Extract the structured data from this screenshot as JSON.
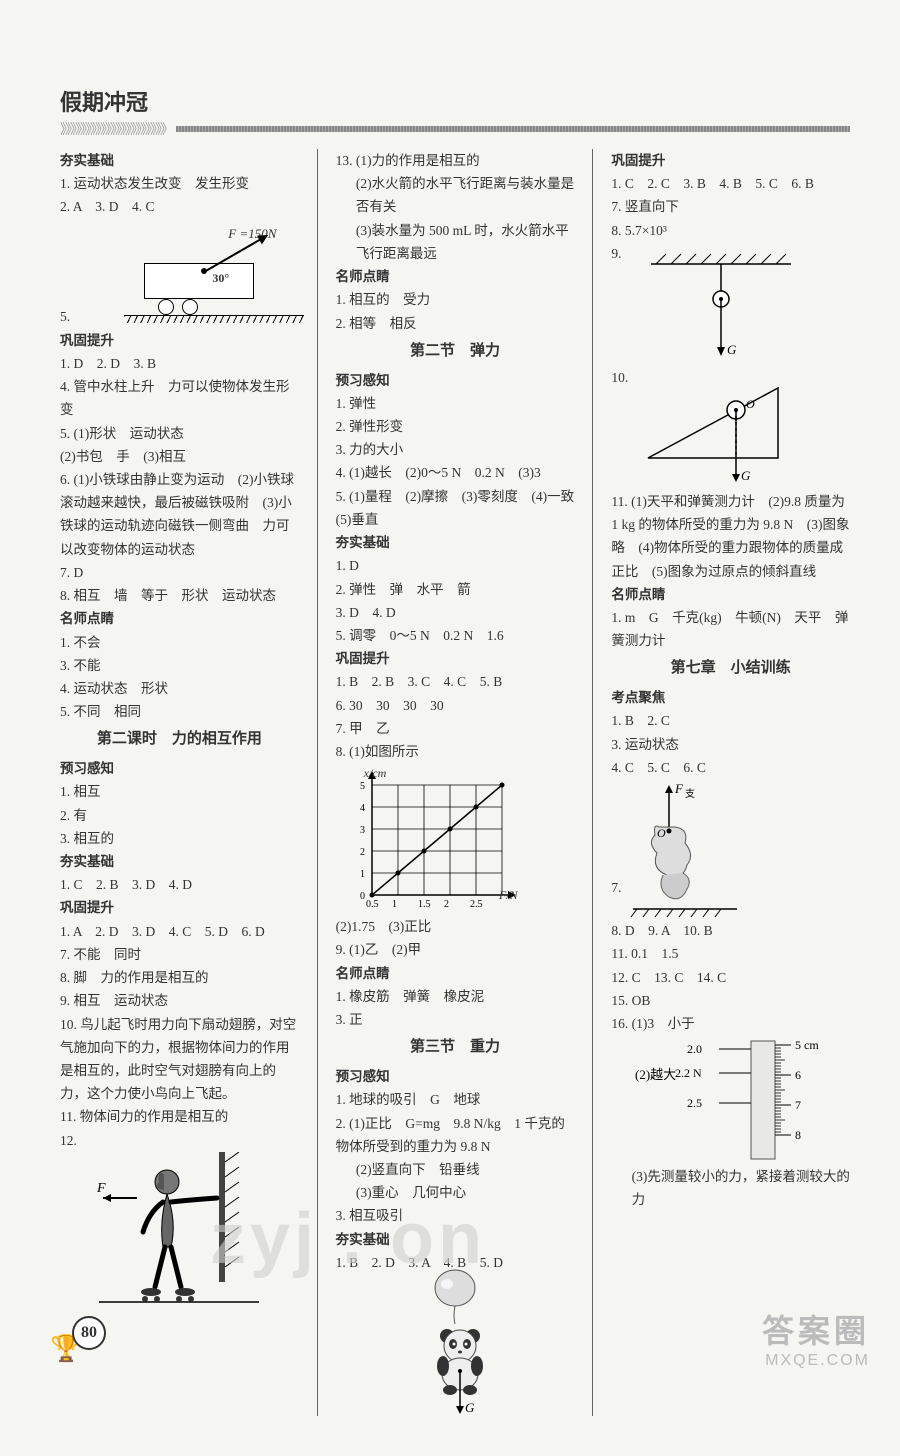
{
  "header": {
    "title": "假期冲冠",
    "arrows": "》》》》》》》》》》》》》》》》》》》》》"
  },
  "page_number": "80",
  "footer": {
    "brand": "答案圈",
    "url": "MXQE.COM"
  },
  "watermark_center": "zyj  . on",
  "col1": {
    "sec1_title": "夯实基础",
    "l1": "1. 运动状态发生改变　发生形变",
    "l2": "2. A　3. D　4. C",
    "d1_force": "F =150N",
    "d1_angle": "30°",
    "l5": "5.",
    "sec2_title": "巩固提升",
    "l6": "1. D　2. D　3. B",
    "l7": "4. 管中水柱上升　力可以使物体发生形变",
    "l8": "5. (1)形状　运动状态",
    "l9": "(2)书包　手　(3)相互",
    "l10": "6. (1)小铁球由静止变为运动　(2)小铁球滚动越来越快，最后被磁铁吸附　(3)小铁球的运动轨迹向磁铁一侧弯曲　力可以改变物体的运动状态",
    "l11": "7. D",
    "l12": "8. 相互　墙　等于　形状　运动状态",
    "sec3_title": "名师点睛",
    "l13": "1. 不会",
    "l14": "3. 不能",
    "l15": "4. 运动状态　形状",
    "l16": "5. 不同　相同",
    "sec4_title": "第二课时　力的相互作用",
    "sec5_title": "预习感知",
    "l17": "1. 相互",
    "l18": "2. 有",
    "l19": "3. 相互的",
    "sec6_title": "夯实基础",
    "l20": "1. C　2. B　3. D　4. D",
    "sec7_title": "巩固提升",
    "l21": "1. A　2. D　3. D　4. C　5. D　6. D",
    "l22": "7. 不能　同时",
    "l23": "8. 脚　力的作用是相互的",
    "l24": "9. 相互　运动状态",
    "l25": "10. 鸟儿起飞时用力向下扇动翅膀，对空气施加向下的力，根据物体间力的作用是相互的，此时空气对翅膀有向上的力，这个力使小鸟向上飞起。",
    "l26": "11. 物体间力的作用是相互的",
    "l27": "12.",
    "d2_F": "F"
  },
  "col2": {
    "l1": "13. (1)力的作用是相互的",
    "l2": "(2)水火箭的水平飞行距离与装水量是否有关",
    "l3": "(3)装水量为 500 mL 时，水火箭水平飞行距离最远",
    "sec1_title": "名师点睛",
    "l4": "1. 相互的　受力",
    "l5": "2. 相等　相反",
    "sec2_title": "第二节　弹力",
    "sec3_title": "预习感知",
    "l6": "1. 弹性",
    "l7": "2. 弹性形变",
    "l8": "3. 力的大小",
    "l9": "4. (1)越长　(2)0～5 N　0.2 N　(3)3",
    "l10": "5. (1)量程　(2)摩擦　(3)零刻度　(4)一致　(5)垂直",
    "sec4_title": "夯实基础",
    "l11": "1. D",
    "l12": "2. 弹性　弹　水平　箭",
    "l13": "3. D　4. D",
    "l14": "5. 调零　0～5 N　0.2 N　1.6",
    "sec5_title": "巩固提升",
    "l15": "1. B　2. B　3. C　4. C　5. B",
    "l16": "6. 30　30　30　30",
    "l17": "7. 甲　乙",
    "l18": "8. (1)如图所示",
    "chart": {
      "type": "line",
      "x_label": "F/N",
      "y_label": "x/cm",
      "x_ticks": [
        "0.5",
        "1",
        "1.5",
        "2",
        "2.5"
      ],
      "y_ticks": [
        "0",
        "1",
        "2",
        "3",
        "4",
        "5"
      ],
      "points": [
        [
          0,
          0
        ],
        [
          0.5,
          1
        ],
        [
          1,
          2
        ],
        [
          1.5,
          3
        ],
        [
          2,
          4
        ],
        [
          2.5,
          5
        ]
      ],
      "line_color": "#000000",
      "grid_color": "#000000",
      "bg": "#f5f5f2"
    },
    "l19": "(2)1.75　(3)正比",
    "l20": "9. (1)乙　(2)甲",
    "sec6_title": "名师点睛",
    "l21": "1. 橡皮筋　弹簧　橡皮泥",
    "l22": "3. 正",
    "sec7_title": "第三节　重力",
    "sec8_title": "预习感知",
    "l23": "1. 地球的吸引　G　地球",
    "l24": "2. (1)正比　G=mg　9.8 N/kg　1 千克的物体所受到的重力为 9.8 N",
    "l25": "(2)竖直向下　铅垂线",
    "l26": "(3)重心　几何中心",
    "l27": "3. 相互吸引",
    "sec9_title": "夯实基础",
    "l28": "1. B　2. D　3. A　4. B　5. D",
    "d4_G": "G"
  },
  "col3": {
    "sec1_title": "巩固提升",
    "l1": "1. C　2. C　3. B　4. B　5. C　6. B",
    "l2": "7. 竖直向下",
    "l3": "8. 5.7×10³",
    "l4": "9.",
    "d5_G": "G",
    "l5": "10.",
    "d6_O": "O",
    "d6_G": "G",
    "l6": "11. (1)天平和弹簧测力计　(2)9.8 质量为 1 kg 的物体所受的重力为 9.8 N　(3)图象略　(4)物体所受的重力跟物体的质量成正比　(5)图象为过原点的倾斜直线",
    "sec2_title": "名师点睛",
    "l7": "1. m　G　千克(kg)　牛顿(N)　天平　弹簧测力计",
    "sec3_title": "第七章　小结训练",
    "sec4_title": "考点聚焦",
    "l8": "1. B　2. C",
    "l9": "3. 运动状态",
    "l10": "4. C　5. C　6. C",
    "d7_F": "F 支",
    "d7_O": "O",
    "l11": "7.",
    "l12": "8. D　9. A　10. B",
    "l13": "11. 0.1　1.5",
    "l14": "12. C　13. C　14. C",
    "l15": "15. OB",
    "l16": "16. (1)3　小于",
    "ruler": {
      "left_labels": [
        "2.0",
        "2.2 N",
        "2.5"
      ],
      "right_labels": [
        "5 cm",
        "6",
        "7",
        "8"
      ]
    },
    "l17": "(2)越大",
    "l18": "(3)先测量较小的力，紧接着测较大的力"
  }
}
